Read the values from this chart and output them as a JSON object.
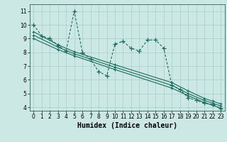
{
  "xlabel": "Humidex (Indice chaleur)",
  "bg_color": "#cce8e4",
  "grid_color": "#aaccca",
  "line_color": "#1a6b5e",
  "xlim": [
    -0.5,
    23.5
  ],
  "ylim": [
    3.75,
    11.5
  ],
  "xticks": [
    0,
    1,
    2,
    3,
    4,
    5,
    6,
    7,
    8,
    9,
    10,
    11,
    12,
    13,
    14,
    15,
    16,
    17,
    18,
    19,
    20,
    21,
    22,
    23
  ],
  "yticks": [
    4,
    5,
    6,
    7,
    8,
    9,
    10,
    11
  ],
  "main_x": [
    0,
    1,
    2,
    3,
    4,
    5,
    6,
    7,
    8,
    9,
    10,
    11,
    12,
    13,
    14,
    15,
    16,
    17,
    18,
    19,
    20,
    21,
    22,
    23
  ],
  "main_y": [
    10.0,
    9.2,
    9.0,
    8.5,
    8.1,
    11.0,
    8.0,
    7.5,
    6.6,
    6.3,
    8.6,
    8.8,
    8.3,
    8.1,
    8.9,
    8.9,
    8.3,
    5.6,
    5.3,
    4.7,
    4.5,
    4.3,
    4.2,
    3.9
  ],
  "trend1_x": [
    0,
    3,
    5,
    10,
    17,
    19,
    21,
    22,
    23
  ],
  "trend1_y": [
    9.5,
    8.55,
    8.05,
    7.1,
    5.8,
    5.2,
    4.65,
    4.45,
    4.25
  ],
  "trend2_x": [
    0,
    3,
    5,
    10,
    17,
    19,
    21,
    22,
    23
  ],
  "trend2_y": [
    9.0,
    8.2,
    7.75,
    6.75,
    5.4,
    4.85,
    4.35,
    4.15,
    3.95
  ],
  "trend3_x": [
    0,
    3,
    5,
    10,
    17,
    19,
    21,
    22,
    23
  ],
  "trend3_y": [
    9.25,
    8.38,
    7.9,
    6.92,
    5.6,
    5.0,
    4.5,
    4.3,
    4.1
  ],
  "xlabel_fontsize": 7,
  "tick_fontsize": 5.5
}
